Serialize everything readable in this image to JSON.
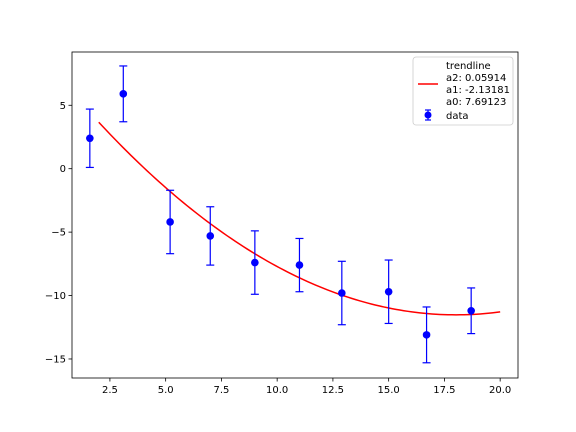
{
  "chart_data": {
    "type": "scatter",
    "title": "",
    "xlabel": "",
    "ylabel": "",
    "xlim": [
      0.8,
      20.8
    ],
    "ylim": [
      -16.5,
      9.2
    ],
    "x_ticks": [
      2.5,
      5.0,
      7.5,
      10.0,
      12.5,
      15.0,
      17.5,
      20.0
    ],
    "x_tick_labels": [
      "2.5",
      "5.0",
      "7.5",
      "10.0",
      "12.5",
      "15.0",
      "17.5",
      "20.0"
    ],
    "y_ticks": [
      5,
      0,
      -5,
      -10,
      -15
    ],
    "y_tick_labels": [
      "5",
      "0",
      "−5",
      "−10",
      "−15"
    ],
    "grid": false,
    "legend_position": "top-right",
    "series": [
      {
        "name": "data",
        "kind": "errorbar",
        "color": "#0000ff",
        "x": [
          1.6,
          3.1,
          5.2,
          7.0,
          9.0,
          11.0,
          12.9,
          15.0,
          16.7,
          18.7
        ],
        "y": [
          2.4,
          5.9,
          -4.2,
          -5.3,
          -7.4,
          -7.6,
          -9.8,
          -9.7,
          -13.1,
          -11.2
        ],
        "yerr": [
          2.3,
          2.2,
          2.5,
          2.3,
          2.5,
          2.1,
          2.5,
          2.5,
          2.2,
          1.8
        ]
      },
      {
        "name": "trendline\na2: 0.05914\na1: -2.13181\na0: 7.69123",
        "kind": "curve",
        "color": "#ff0000",
        "x_range": [
          2.0,
          20.0
        ],
        "coefficients": {
          "a2": 0.05914,
          "a1": -2.13181,
          "a0": 7.69123
        }
      }
    ],
    "legend": {
      "trendline_lines": [
        "trendline",
        "a2: 0.05914",
        "a1: -2.13181",
        "a0: 7.69123"
      ],
      "data_label": "data"
    }
  }
}
